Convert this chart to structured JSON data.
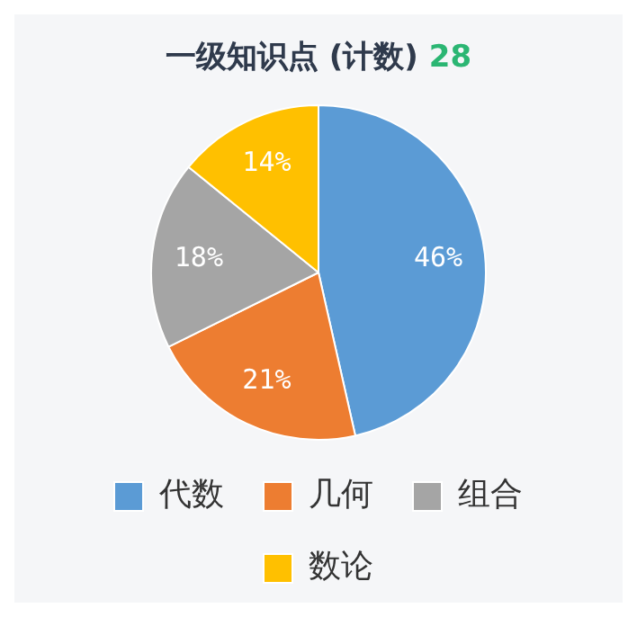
{
  "chart_data": {
    "type": "pie",
    "title": "一级知识点 (计数)",
    "subtitle": "28",
    "categories": [
      "代数",
      "几何",
      "组合",
      "数论"
    ],
    "values": [
      46,
      21,
      18,
      14
    ],
    "colors": [
      "#5b9bd5",
      "#ed7d31",
      "#a5a5a5",
      "#ffc000"
    ],
    "value_labels": [
      "46%",
      "21%",
      "18%",
      "14%"
    ],
    "legend": "bottom"
  }
}
